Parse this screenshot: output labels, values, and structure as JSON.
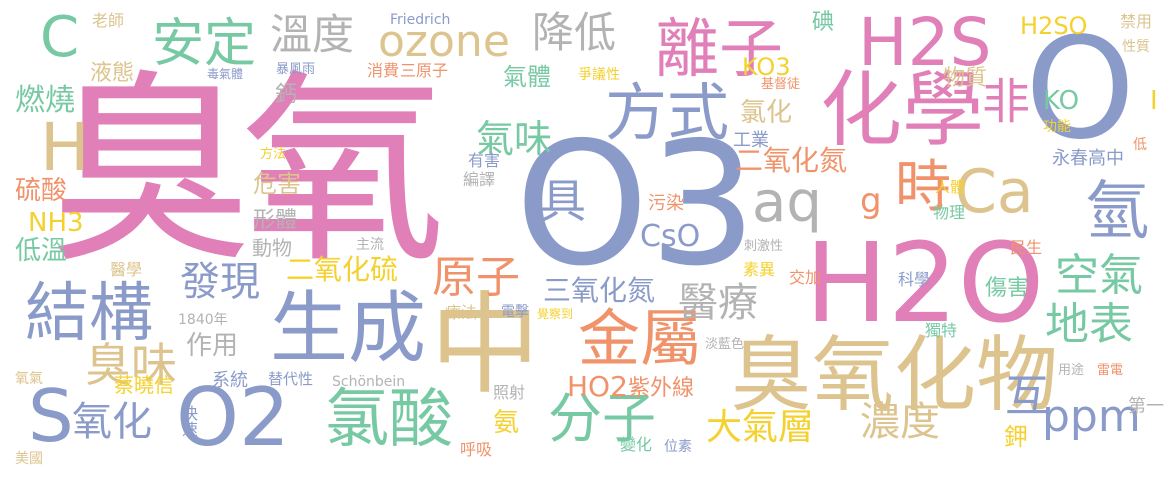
{
  "palette": {
    "pink": "#e07fb8",
    "blue": "#8b9bc9",
    "tan": "#ddc48e",
    "orange": "#f0936b",
    "green": "#77c9a4",
    "yellow": "#f5d12f",
    "gray": "#b3b3b3"
  },
  "words": [
    {
      "text": "臭氧",
      "color": "pink"
    },
    {
      "text": "O3",
      "color": "blue"
    },
    {
      "text": "中",
      "color": "tan"
    },
    {
      "text": "H2O",
      "color": "pink"
    },
    {
      "text": "O",
      "color": "blue"
    },
    {
      "text": "化學",
      "color": "pink"
    },
    {
      "text": "臭氧化物",
      "color": "tan"
    },
    {
      "text": "離子",
      "color": "pink"
    },
    {
      "text": "H2S",
      "color": "pink"
    },
    {
      "text": "O2",
      "color": "blue"
    },
    {
      "text": "生成",
      "color": "blue"
    },
    {
      "text": "結構",
      "color": "blue"
    },
    {
      "text": "金屬",
      "color": "orange"
    },
    {
      "text": "氯酸",
      "color": "green"
    },
    {
      "text": "方式",
      "color": "blue"
    },
    {
      "text": "Ca",
      "color": "tan"
    },
    {
      "text": "ozone",
      "color": "tan"
    },
    {
      "text": "安定",
      "color": "green"
    },
    {
      "text": "溫度",
      "color": "gray"
    },
    {
      "text": "降低",
      "color": "gray"
    },
    {
      "text": "aq",
      "color": "gray"
    },
    {
      "text": "時",
      "color": "orange"
    },
    {
      "text": "氫",
      "color": "blue"
    },
    {
      "text": "分子",
      "color": "green"
    },
    {
      "text": "臭味",
      "color": "tan"
    },
    {
      "text": "氧化",
      "color": "blue"
    },
    {
      "text": "S",
      "color": "blue"
    },
    {
      "text": "C",
      "color": "green"
    },
    {
      "text": "H",
      "color": "tan"
    },
    {
      "text": "發現",
      "color": "blue"
    },
    {
      "text": "原子",
      "color": "orange"
    },
    {
      "text": "醫療",
      "color": "gray"
    },
    {
      "text": "空氣",
      "color": "green"
    },
    {
      "text": "地表",
      "color": "green"
    },
    {
      "text": "濃度",
      "color": "tan"
    },
    {
      "text": "ppm",
      "color": "blue"
    },
    {
      "text": "大氣層",
      "color": "yellow"
    },
    {
      "text": "二氧化硫",
      "color": "yellow"
    },
    {
      "text": "三氧化氮",
      "color": "blue"
    },
    {
      "text": "二氧化氮",
      "color": "orange"
    },
    {
      "text": "氣味",
      "color": "green"
    },
    {
      "text": "非",
      "color": "pink"
    },
    {
      "text": "具",
      "color": "blue"
    },
    {
      "text": "CsO",
      "color": "blue"
    },
    {
      "text": "燃燒",
      "color": "green"
    },
    {
      "text": "液態",
      "color": "tan"
    },
    {
      "text": "硫酸",
      "color": "orange"
    },
    {
      "text": "NH3",
      "color": "yellow"
    },
    {
      "text": "低溫",
      "color": "green"
    },
    {
      "text": "形體",
      "color": "gray"
    },
    {
      "text": "危害",
      "color": "tan"
    },
    {
      "text": "動物",
      "color": "gray"
    },
    {
      "text": "作用",
      "color": "gray"
    },
    {
      "text": "系統",
      "color": "blue"
    },
    {
      "text": "蔡曉信",
      "color": "yellow"
    },
    {
      "text": "HO2",
      "color": "orange"
    },
    {
      "text": "紫外線",
      "color": "orange"
    },
    {
      "text": "氨",
      "color": "yellow"
    },
    {
      "text": "互",
      "color": "blue"
    },
    {
      "text": "鉀",
      "color": "yellow"
    },
    {
      "text": "第一",
      "color": "gray"
    },
    {
      "text": "傷害",
      "color": "green"
    },
    {
      "text": "KO3",
      "color": "yellow"
    },
    {
      "text": "KO",
      "color": "green"
    },
    {
      "text": "氣體",
      "color": "green"
    },
    {
      "text": "氯化",
      "color": "tan"
    },
    {
      "text": "g",
      "color": "orange"
    },
    {
      "text": "H2SO",
      "color": "yellow"
    },
    {
      "text": "碘",
      "color": "green"
    },
    {
      "text": "工業",
      "color": "blue"
    },
    {
      "text": "物質",
      "color": "tan"
    },
    {
      "text": "I",
      "color": "yellow"
    },
    {
      "text": "鈣",
      "color": "gray"
    },
    {
      "text": "消費",
      "color": "orange"
    },
    {
      "text": "三原子",
      "color": "orange"
    },
    {
      "text": "老師",
      "color": "tan"
    },
    {
      "text": "Friedrich",
      "color": "blue"
    },
    {
      "text": "Schönbein",
      "color": "gray"
    },
    {
      "text": "暴風雨",
      "color": "blue"
    },
    {
      "text": "毒氣體",
      "color": "blue"
    },
    {
      "text": "禁用",
      "color": "tan"
    },
    {
      "text": "性質",
      "color": "tan"
    },
    {
      "text": "功能",
      "color": "yellow"
    },
    {
      "text": "物理",
      "color": "green"
    },
    {
      "text": "民生",
      "color": "orange"
    },
    {
      "text": "科學",
      "color": "blue"
    },
    {
      "text": "獨特",
      "color": "green"
    },
    {
      "text": "交加",
      "color": "orange"
    },
    {
      "text": "素異",
      "color": "yellow"
    },
    {
      "text": "療法",
      "color": "tan"
    },
    {
      "text": "電擊",
      "color": "blue"
    },
    {
      "text": "覺察到",
      "color": "yellow"
    },
    {
      "text": "替代性",
      "color": "blue"
    },
    {
      "text": "醫學",
      "color": "tan"
    },
    {
      "text": "主流",
      "color": "gray"
    },
    {
      "text": "永春高中",
      "color": "blue"
    },
    {
      "text": "人體",
      "color": "yellow"
    },
    {
      "text": "1840年",
      "color": "gray"
    },
    {
      "text": "照射",
      "color": "gray"
    },
    {
      "text": "污染",
      "color": "orange"
    },
    {
      "text": "編譯",
      "color": "gray"
    },
    {
      "text": "有害",
      "color": "blue"
    },
    {
      "text": "呼吸",
      "color": "orange"
    },
    {
      "text": "位素",
      "color": "blue"
    },
    {
      "text": "變化",
      "color": "green"
    },
    {
      "text": "快速",
      "color": "blue"
    },
    {
      "text": "美國",
      "color": "tan"
    },
    {
      "text": "氧氣",
      "color": "tan"
    },
    {
      "text": "用途",
      "color": "gray"
    },
    {
      "text": "雷電",
      "color": "orange"
    },
    {
      "text": "低",
      "color": "orange"
    },
    {
      "text": "基督徒",
      "color": "orange"
    },
    {
      "text": "爭議性",
      "color": "yellow"
    },
    {
      "text": "方法",
      "color": "yellow"
    },
    {
      "text": "刺激性",
      "color": "gray"
    },
    {
      "text": "淡藍色",
      "color": "gray"
    }
  ]
}
